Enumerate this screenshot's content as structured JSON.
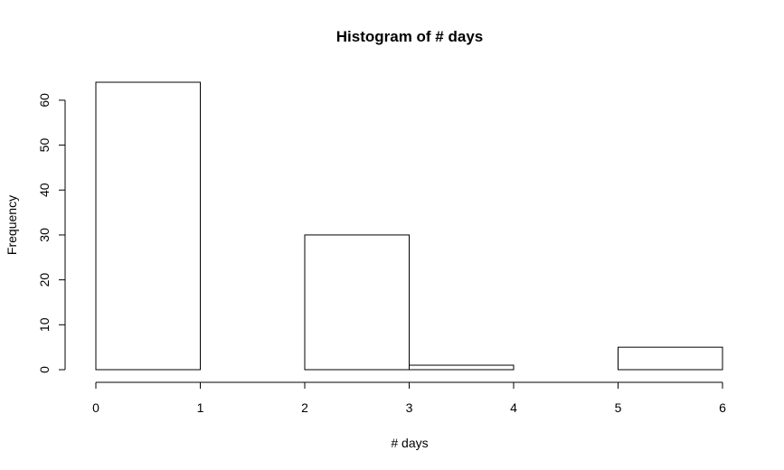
{
  "chart_data": {
    "type": "bar",
    "title": "Histogram of # days",
    "xlabel": "# days",
    "ylabel": "Frequency",
    "bins": [
      {
        "from": 0,
        "to": 1,
        "count": 64
      },
      {
        "from": 1,
        "to": 2,
        "count": 0
      },
      {
        "from": 2,
        "to": 3,
        "count": 30
      },
      {
        "from": 3,
        "to": 4,
        "count": 1
      },
      {
        "from": 4,
        "to": 5,
        "count": 0
      },
      {
        "from": 5,
        "to": 6,
        "count": 5
      }
    ],
    "xticks": [
      0,
      1,
      2,
      3,
      4,
      5,
      6
    ],
    "yticks": [
      0,
      10,
      20,
      30,
      40,
      50,
      60
    ],
    "xlim": [
      0,
      6
    ],
    "ylim": [
      0,
      64
    ],
    "grid": false,
    "colors": {
      "bar_fill": "#ffffff",
      "bar_stroke": "#000000",
      "axis": "#000000"
    }
  }
}
